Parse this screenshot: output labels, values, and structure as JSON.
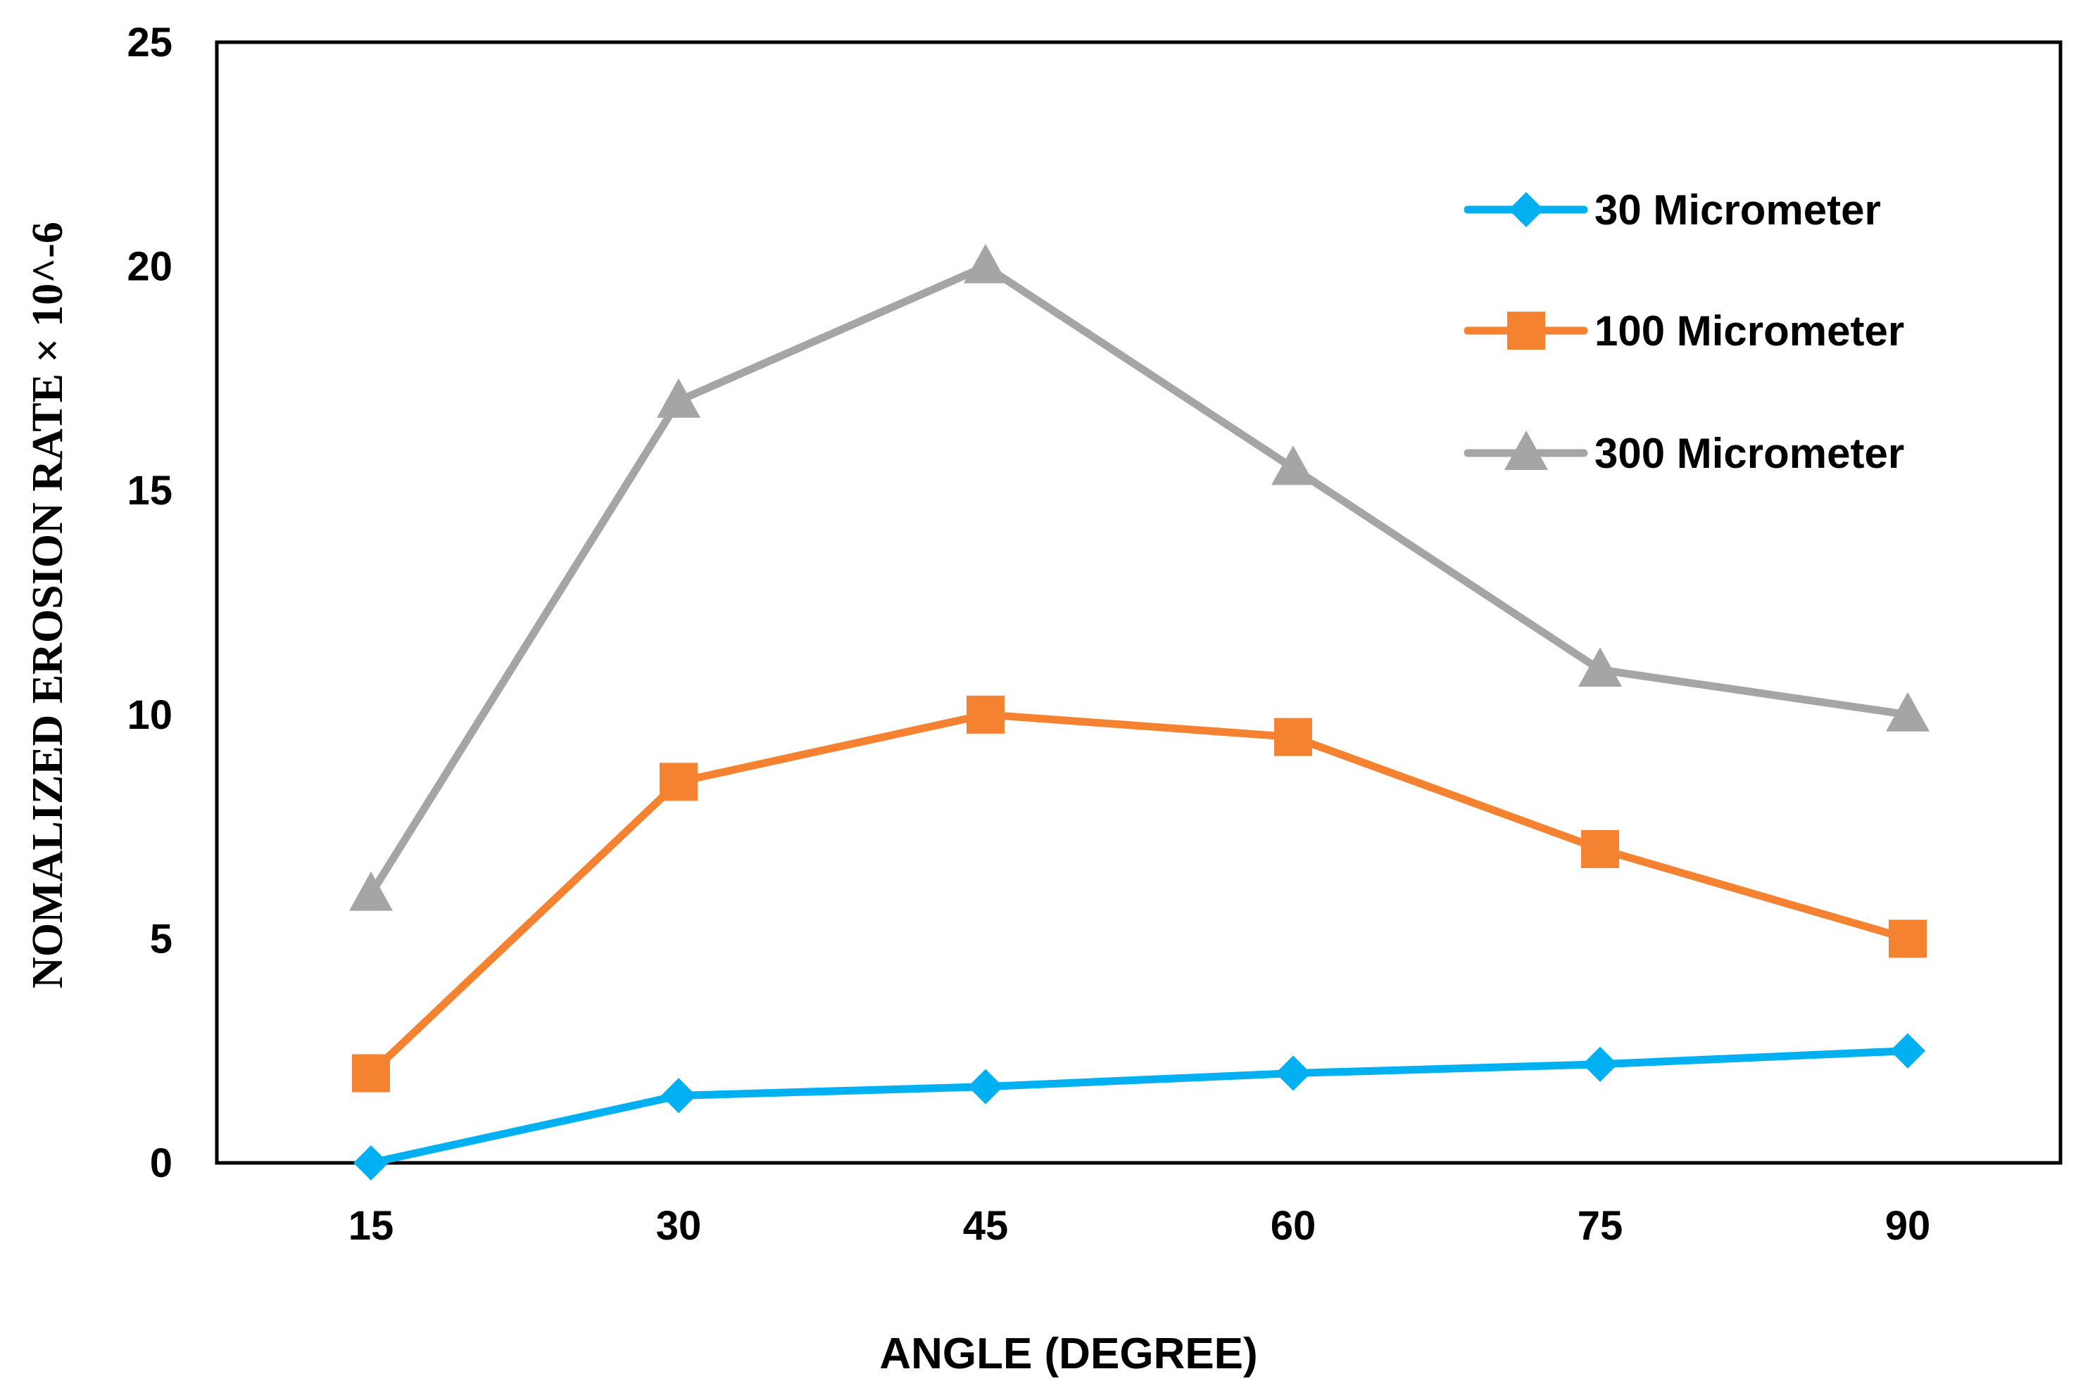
{
  "chart_data": {
    "type": "line",
    "title": "",
    "xlabel": "ANGLE (DEGREE)",
    "ylabel": "NOMALIZED EROSION RATE  × 10^-6",
    "categories": [
      "15",
      "30",
      "45",
      "60",
      "75",
      "90"
    ],
    "ylim": [
      0,
      25
    ],
    "yticks": [
      "0",
      "5",
      "10",
      "15",
      "20",
      "25"
    ],
    "grid": false,
    "legend_position": "top-right",
    "series": [
      {
        "name": "30 Micrometer",
        "color": "#00B0F0",
        "marker": "diamond",
        "values": [
          0,
          1.5,
          1.7,
          2.0,
          2.2,
          2.5
        ]
      },
      {
        "name": "100 Micrometer",
        "color": "#F58230",
        "marker": "square",
        "values": [
          2.0,
          8.5,
          10.0,
          9.5,
          7.0,
          5.0
        ]
      },
      {
        "name": "300 Micrometer",
        "color": "#A5A5A5",
        "marker": "triangle",
        "values": [
          6.0,
          17.0,
          20.0,
          15.5,
          11.0,
          10.0
        ]
      }
    ]
  }
}
